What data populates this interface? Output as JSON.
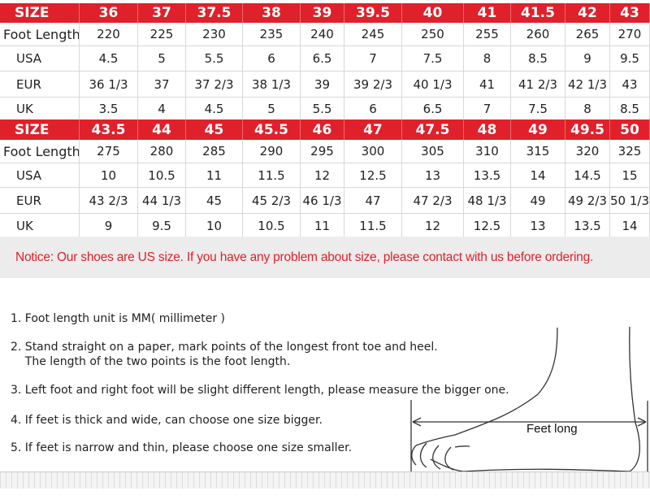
{
  "tables": [
    {
      "header": [
        "SIZE",
        "36",
        "37",
        "37.5",
        "38",
        "39",
        "39.5",
        "40",
        "41",
        "41.5",
        "42",
        "43"
      ],
      "rows": [
        [
          "Foot Length",
          "220",
          "225",
          "230",
          "235",
          "240",
          "245",
          "250",
          "255",
          "260",
          "265",
          "270"
        ],
        [
          "USA",
          "4.5",
          "5",
          "5.5",
          "6",
          "6.5",
          "7",
          "7.5",
          "8",
          "8.5",
          "9",
          "9.5"
        ],
        [
          "EUR",
          "36 1/3",
          "37",
          "37 2/3",
          "38 1/3",
          "39",
          "39 2/3",
          "40 1/3",
          "41",
          "41 2/3",
          "42 1/3",
          "43"
        ],
        [
          "UK",
          "3.5",
          "4",
          "4.5",
          "5",
          "5.5",
          "6",
          "6.5",
          "7",
          "7.5",
          "8",
          "8.5"
        ]
      ]
    },
    {
      "header": [
        "SIZE",
        "43.5",
        "44",
        "45",
        "45.5",
        "46",
        "47",
        "47.5",
        "48",
        "49",
        "49.5",
        "50"
      ],
      "rows": [
        [
          "Foot Length",
          "275",
          "280",
          "285",
          "290",
          "295",
          "300",
          "305",
          "310",
          "315",
          "320",
          "325"
        ],
        [
          "USA",
          "10",
          "10.5",
          "11",
          "11.5",
          "12",
          "12.5",
          "13",
          "13.5",
          "14",
          "14.5",
          "15"
        ],
        [
          "EUR",
          "43 2/3",
          "44 1/3",
          "45",
          "45 2/3",
          "46 1/3",
          "47",
          "47 2/3",
          "48 1/3",
          "49",
          "49 2/3",
          "50 1/3"
        ],
        [
          "UK",
          "9",
          "9.5",
          "10",
          "10.5",
          "11",
          "11.5",
          "12",
          "12.5",
          "13",
          "13.5",
          "14"
        ]
      ]
    }
  ],
  "notice": "Notice: Our shoes are US size. If you have any problem about size, please contact with us before ordering.",
  "instructions": [
    "1. Foot length unit is MM( millimeter )",
    "2. Stand straight on a paper, mark points of the longest front toe and heel.",
    "    The length of the two points is the foot length.",
    "3. Left foot and right foot will be slight different length, please measure the bigger one.",
    "4. If feet is thick and wide, can choose one size bigger.",
    "5. If feet is narrow and thin, please choose one size smaller."
  ],
  "diagram_label": "Feet long",
  "colors": {
    "header_red": "#e0202a",
    "notice_text": "#e0202a",
    "notice_bg": "#ececec"
  }
}
